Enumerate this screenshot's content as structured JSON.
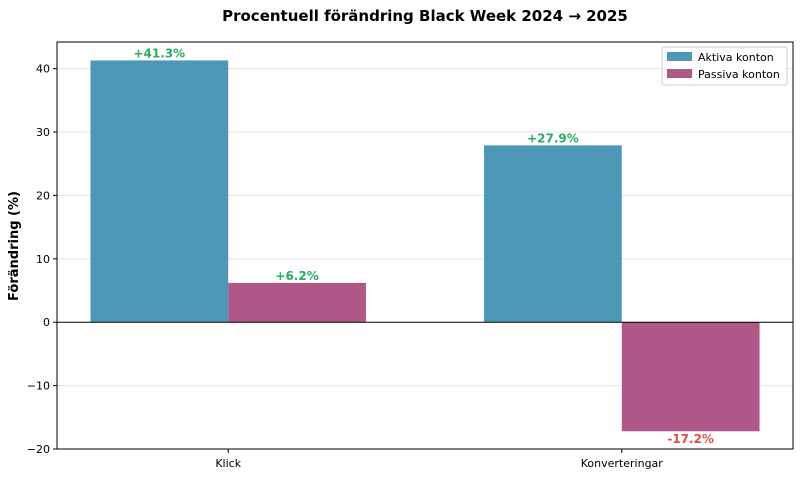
{
  "chart_data": {
    "type": "bar",
    "title": "Procentuell förändring Black Week 2024 → 2025",
    "xlabel": "",
    "ylabel": "Förändring (%)",
    "categories": [
      "Klick",
      "Konverteringar"
    ],
    "series": [
      {
        "name": "Aktiva konton",
        "values": [
          41.3,
          27.9
        ],
        "color": "#2E86AB"
      },
      {
        "name": "Passiva konton",
        "values": [
          6.2,
          -17.2
        ],
        "color": "#A23B72"
      }
    ],
    "data_labels": [
      [
        "+41.3%",
        "+27.9%"
      ],
      [
        "+6.2%",
        "-17.2%"
      ]
    ],
    "positive_label_color": "#27AE60",
    "negative_label_color": "#E74C3C",
    "ylim": [
      -20,
      44.2
    ],
    "yticks": [
      -20,
      -10,
      0,
      10,
      20,
      30,
      40
    ],
    "ytick_labels": [
      "−20",
      "−10",
      "0",
      "10",
      "20",
      "30",
      "40"
    ],
    "grid": "horizontal",
    "zero_line": true,
    "legend": "top-right"
  }
}
